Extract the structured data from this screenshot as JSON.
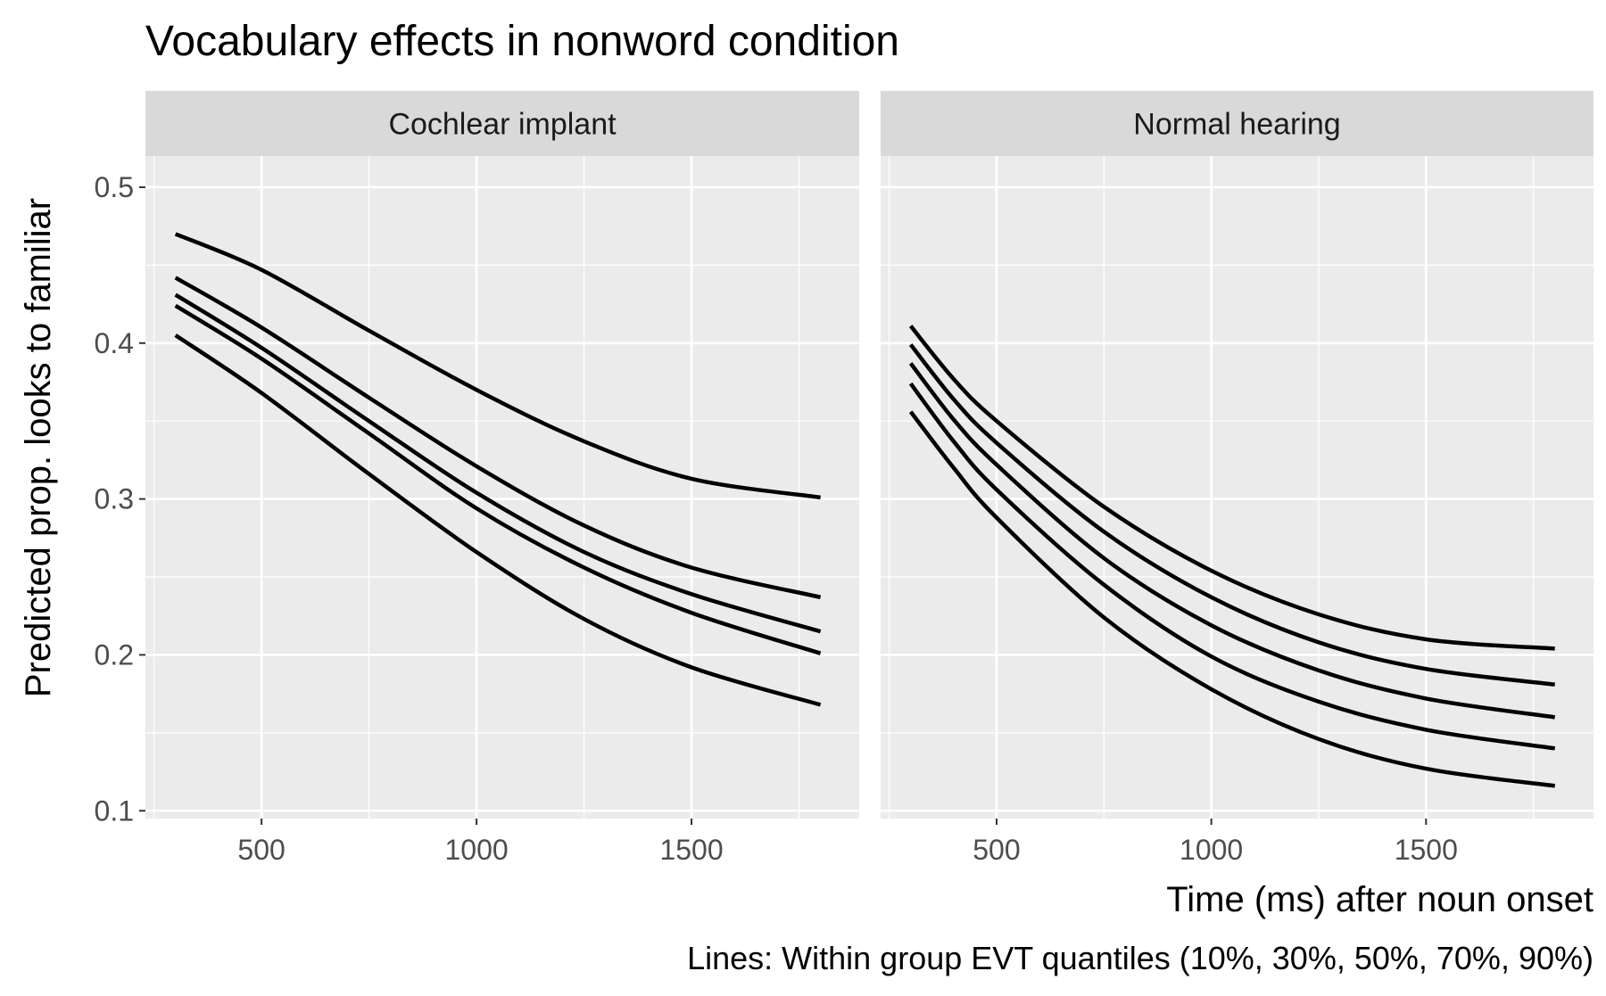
{
  "chart_data": {
    "type": "line",
    "title": "Vocabulary effects in nonword condition",
    "xlabel": "Time (ms) after noun onset",
    "ylabel": "Predicted prop. looks to familiar",
    "caption": "Lines: Within group EVT quantiles (10%, 30%, 50%, 70%, 90%)",
    "xlim": [
      230,
      1890
    ],
    "ylim": [
      0.095,
      0.52
    ],
    "x_ticks": [
      500,
      1000,
      1500
    ],
    "x_tick_labels": [
      "500",
      "1000",
      "1500"
    ],
    "y_ticks": [
      0.1,
      0.2,
      0.3,
      0.4,
      0.5
    ],
    "y_tick_labels": [
      "0.1",
      "0.2",
      "0.3",
      "0.4",
      "0.5"
    ],
    "grid": true,
    "line_color": "#000000",
    "panel_background": "#ebebeb",
    "strip_background": "#d9d9d9",
    "facets": [
      {
        "strip": "Cochlear implant",
        "x": [
          300,
          500,
          750,
          1000,
          1250,
          1500,
          1800
        ],
        "series": [
          {
            "values": [
              0.405,
              0.368,
              0.316,
              0.266,
              0.223,
              0.192,
              0.168
            ]
          },
          {
            "values": [
              0.424,
              0.39,
              0.342,
              0.294,
              0.256,
              0.227,
              0.201
            ]
          },
          {
            "values": [
              0.431,
              0.397,
              0.35,
              0.304,
              0.266,
              0.239,
              0.215
            ]
          },
          {
            "values": [
              0.442,
              0.41,
              0.365,
              0.321,
              0.283,
              0.256,
              0.237
            ]
          },
          {
            "values": [
              0.47,
              0.447,
              0.408,
              0.37,
              0.337,
              0.313,
              0.301
            ]
          }
        ]
      },
      {
        "strip": "Normal hearing",
        "x": [
          300,
          400,
          500,
          750,
          1000,
          1250,
          1500,
          1800
        ],
        "series": [
          {
            "values": [
              0.356,
              0.32,
              0.288,
              0.224,
              0.178,
              0.146,
              0.127,
              0.116
            ]
          },
          {
            "values": [
              0.374,
              0.337,
              0.306,
              0.245,
              0.199,
              0.17,
              0.152,
              0.14
            ]
          },
          {
            "values": [
              0.387,
              0.351,
              0.322,
              0.262,
              0.219,
              0.19,
              0.172,
              0.16
            ]
          },
          {
            "values": [
              0.399,
              0.364,
              0.336,
              0.279,
              0.237,
              0.208,
              0.191,
              0.181
            ]
          },
          {
            "values": [
              0.411,
              0.377,
              0.35,
              0.295,
              0.254,
              0.226,
              0.21,
              0.204
            ]
          }
        ]
      }
    ]
  }
}
